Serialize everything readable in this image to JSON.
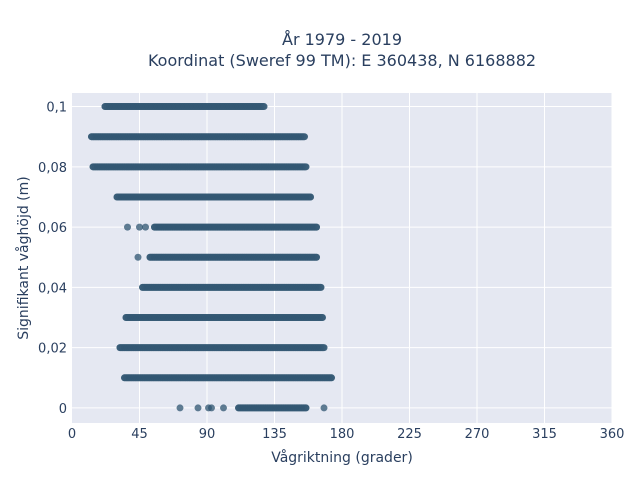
{
  "chart_data": {
    "type": "scatter",
    "title": [
      "År 1979 - 2019",
      "Koordinat (Sweref 99 TM): E 360438, N 6168882"
    ],
    "xlabel": "Vågriktning (grader)",
    "ylabel": "Signifikant våghöjd (m)",
    "xlim": [
      0,
      360
    ],
    "ylim": [
      -0.005,
      0.1045
    ],
    "x_ticks": [
      0,
      45,
      90,
      135,
      180,
      225,
      270,
      315,
      360
    ],
    "x_tick_labels": [
      "0",
      "45",
      "90",
      "135",
      "180",
      "225",
      "270",
      "315",
      "360"
    ],
    "y_ticks": [
      0,
      0.02,
      0.04,
      0.06,
      0.08,
      0.1
    ],
    "y_tick_labels": [
      "0",
      "0,02",
      "0,04",
      "0,06",
      "0,08",
      "0,1"
    ],
    "grid": true,
    "colors": {
      "marker": "#2e5470",
      "plot_bg": "#e5e8f2",
      "grid": "#ffffff",
      "text": "#2a3f5f"
    },
    "bands": [
      {
        "y": 0.1,
        "x_start": 22,
        "x_end": 128,
        "isolated_x": []
      },
      {
        "y": 0.09,
        "x_start": 13,
        "x_end": 155,
        "isolated_x": []
      },
      {
        "y": 0.08,
        "x_start": 14,
        "x_end": 156,
        "isolated_x": []
      },
      {
        "y": 0.07,
        "x_start": 30,
        "x_end": 159,
        "isolated_x": []
      },
      {
        "y": 0.06,
        "x_start": 55,
        "x_end": 163,
        "isolated_x": [
          37,
          45,
          49
        ]
      },
      {
        "y": 0.05,
        "x_start": 52,
        "x_end": 163,
        "isolated_x": [
          44
        ]
      },
      {
        "y": 0.04,
        "x_start": 47,
        "x_end": 166,
        "isolated_x": []
      },
      {
        "y": 0.03,
        "x_start": 36,
        "x_end": 167,
        "isolated_x": []
      },
      {
        "y": 0.02,
        "x_start": 32,
        "x_end": 168,
        "isolated_x": []
      },
      {
        "y": 0.01,
        "x_start": 35,
        "x_end": 173,
        "isolated_x": []
      },
      {
        "y": 0.0,
        "x_start": 111,
        "x_end": 156,
        "isolated_x": [
          72,
          84,
          91,
          93,
          101,
          168
        ]
      }
    ]
  }
}
